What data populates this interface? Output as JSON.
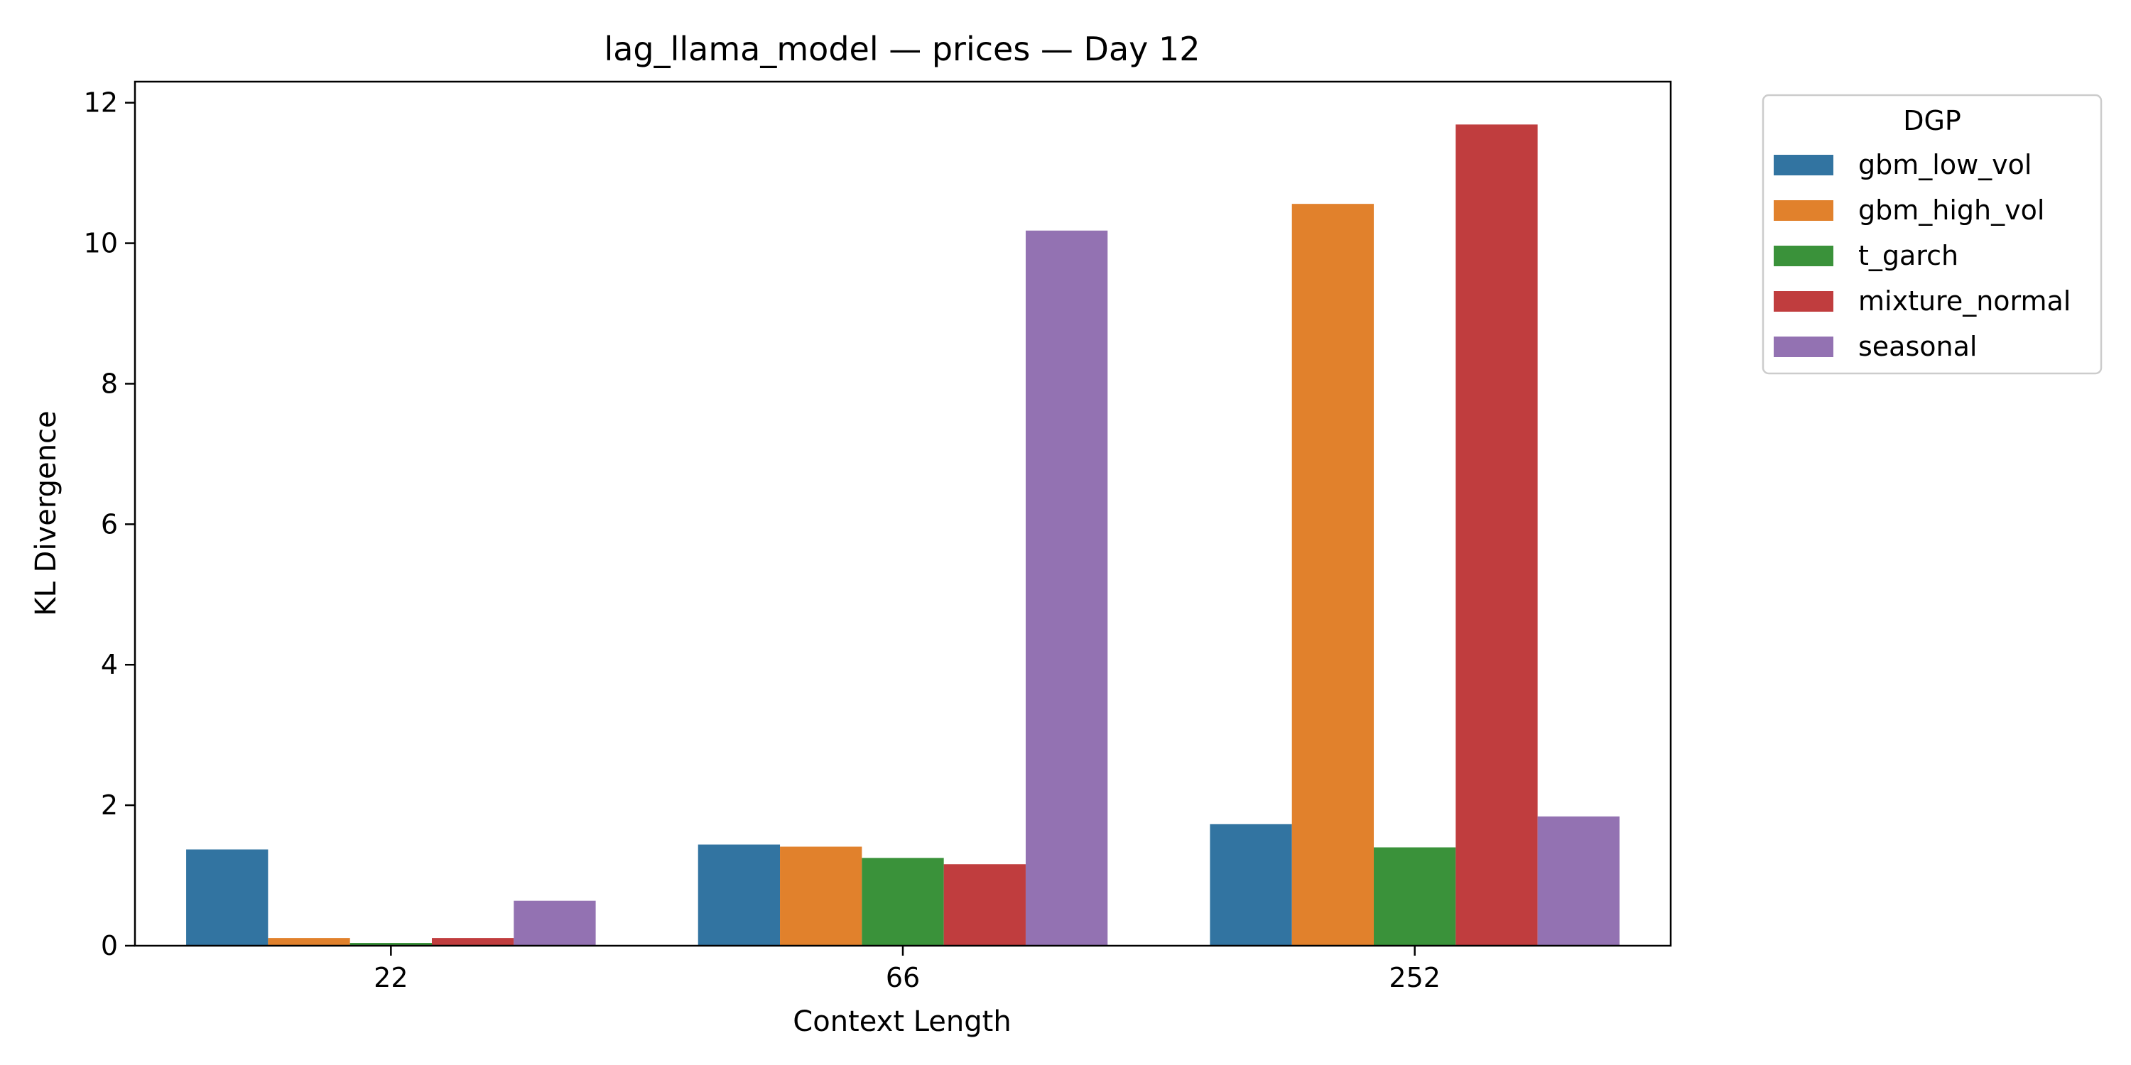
{
  "chart_data": {
    "type": "bar",
    "title": "lag_llama_model — prices — Day 12",
    "xlabel": "Context Length",
    "ylabel": "KL Divergence",
    "categories": [
      "22",
      "66",
      "252"
    ],
    "ylim": [
      0,
      12.3
    ],
    "yticks": [
      0,
      2,
      4,
      6,
      8,
      10,
      12
    ],
    "grid": false,
    "legend": {
      "title": "DGP",
      "placement": "outside-top-right"
    },
    "series": [
      {
        "name": "gbm_low_vol",
        "color": "#3274a1",
        "values": [
          1.37,
          1.44,
          1.73
        ]
      },
      {
        "name": "gbm_high_vol",
        "color": "#e1812c",
        "values": [
          0.11,
          1.41,
          10.56
        ]
      },
      {
        "name": "t_garch",
        "color": "#3a923a",
        "values": [
          0.04,
          1.25,
          1.4
        ]
      },
      {
        "name": "mixture_normal",
        "color": "#c03d3e",
        "values": [
          0.11,
          1.16,
          11.69
        ]
      },
      {
        "name": "seasonal",
        "color": "#9372b2",
        "values": [
          0.64,
          10.18,
          1.84
        ]
      }
    ]
  }
}
